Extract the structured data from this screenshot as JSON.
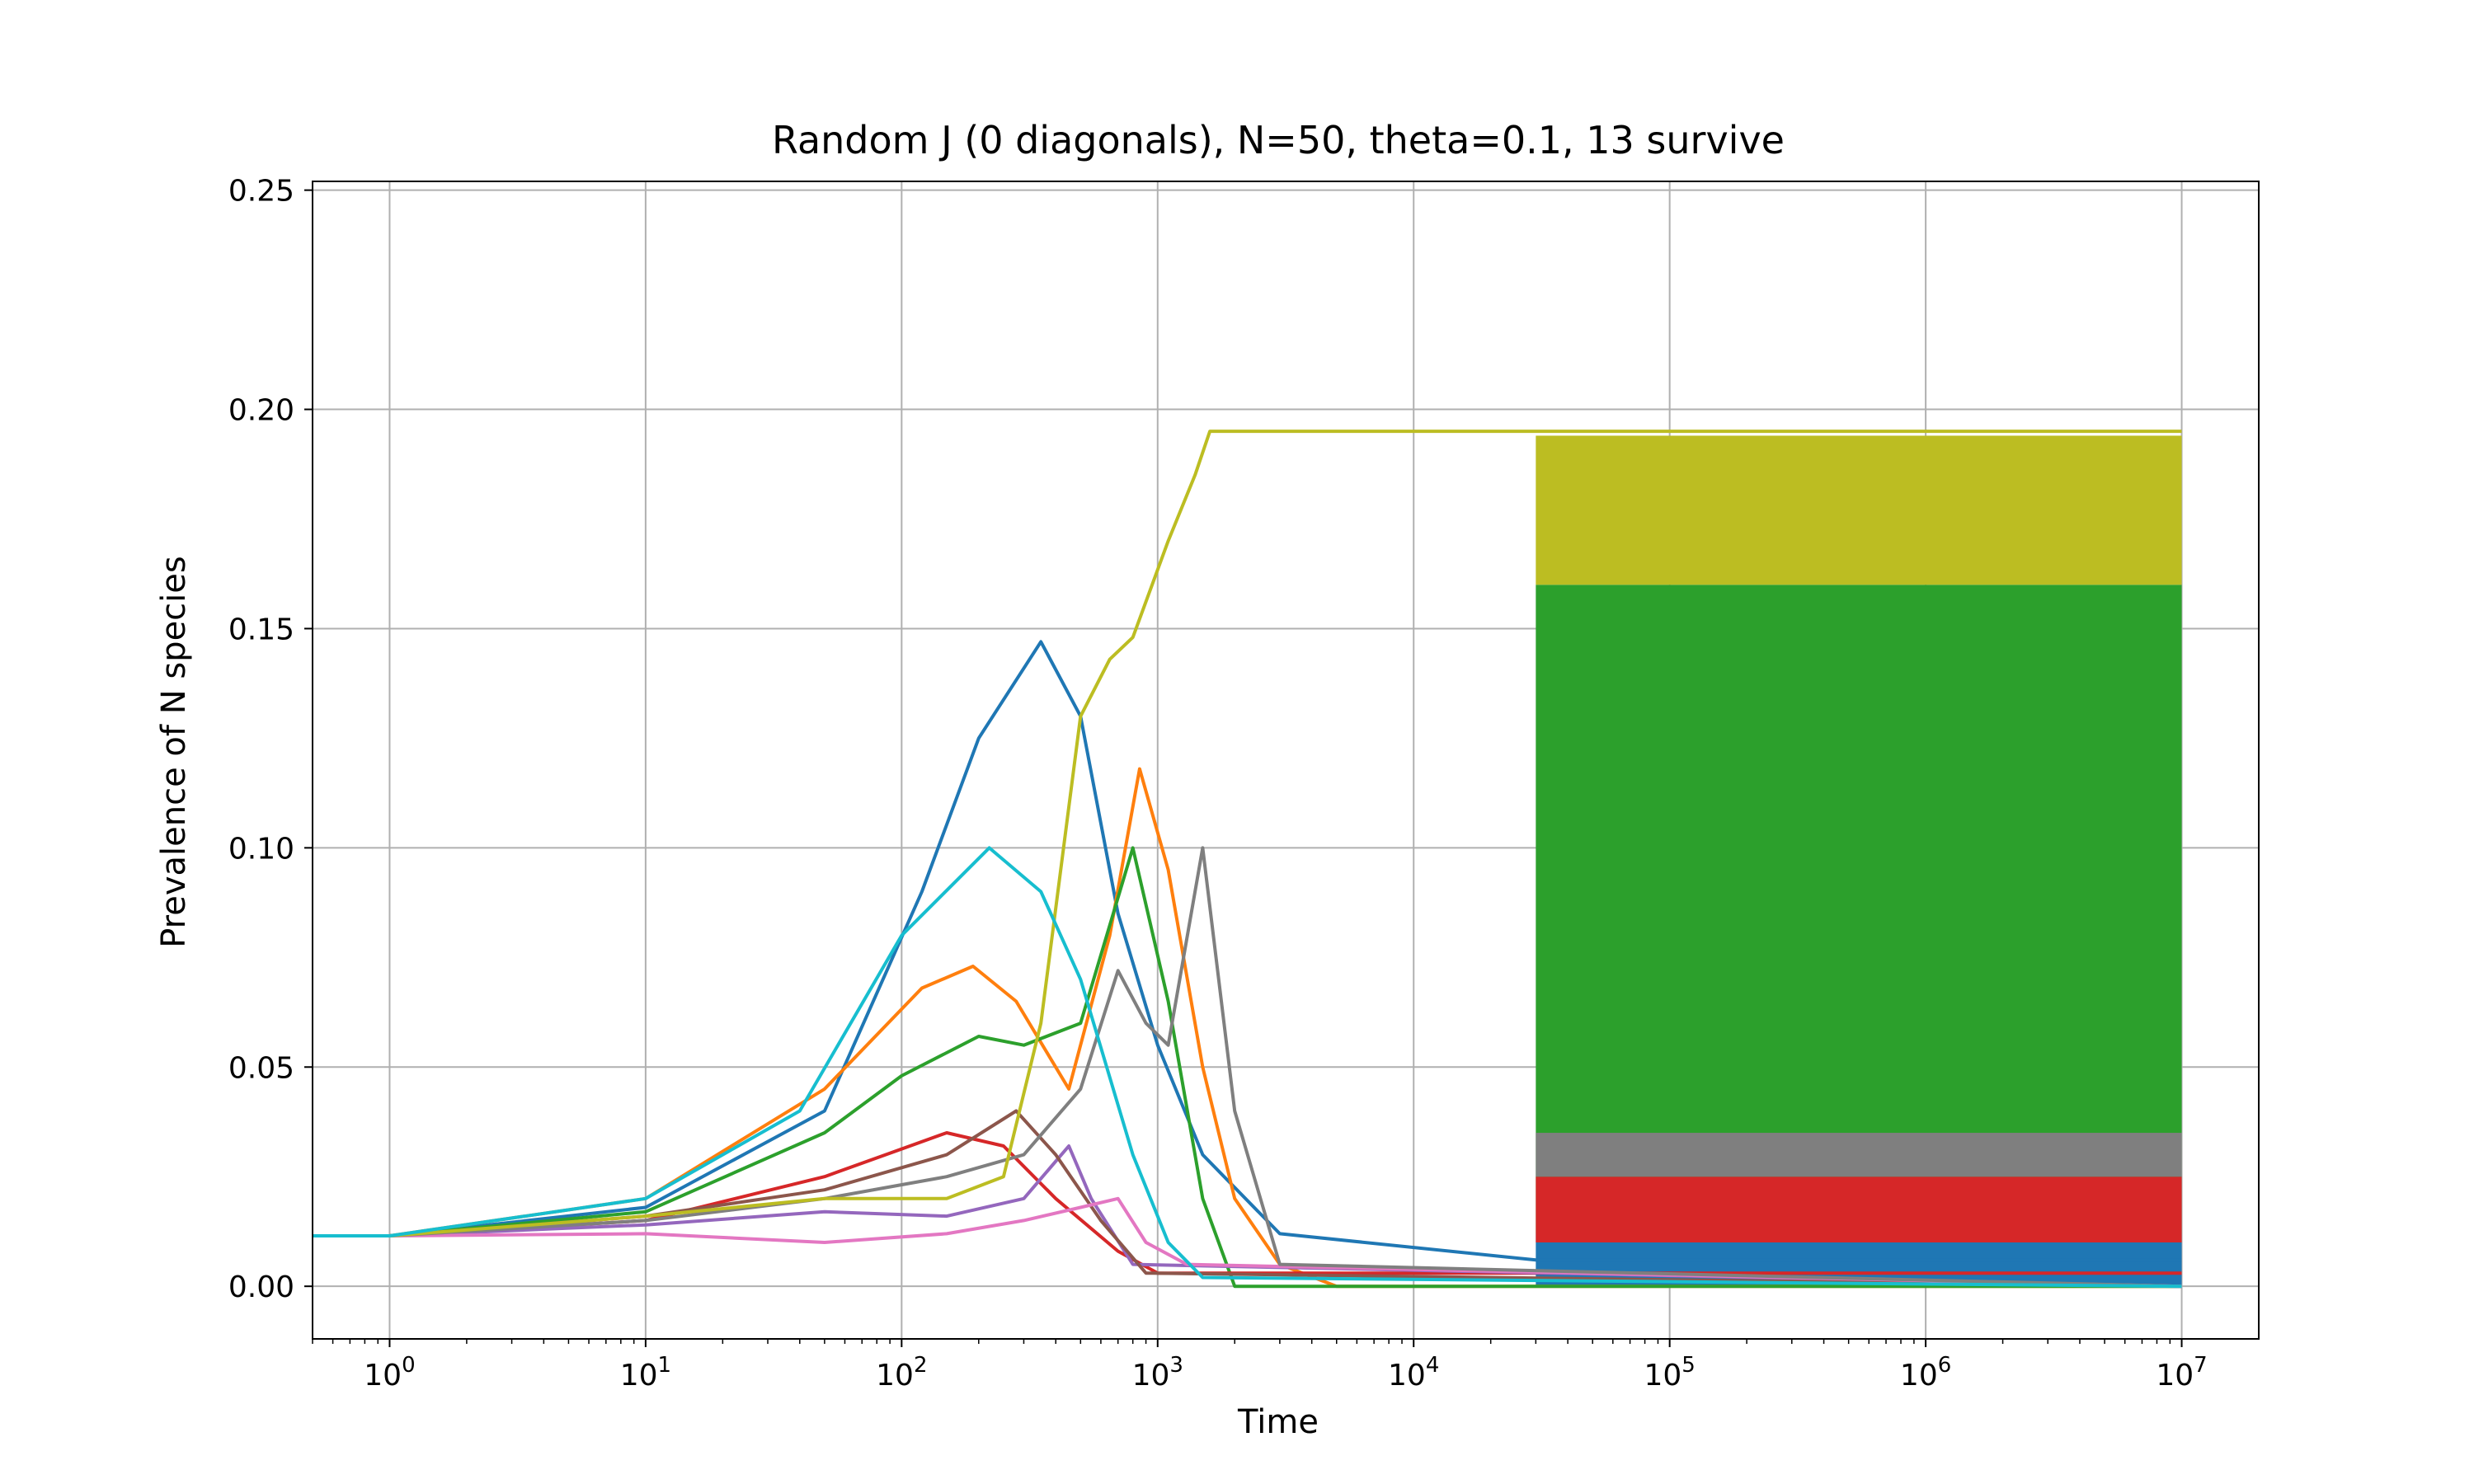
{
  "chart_data": {
    "type": "line",
    "title": "Random J (0 diagonals), N=50, theta=0.1, 13 survive",
    "xlabel": "Time",
    "ylabel": "Prevalence of N species",
    "xscale": "log",
    "xlim": [
      0.5,
      20000000
    ],
    "ylim": [
      -0.012,
      0.252
    ],
    "xticks": [
      {
        "value": 1,
        "base": "10",
        "exp": "0"
      },
      {
        "value": 10,
        "base": "10",
        "exp": "1"
      },
      {
        "value": 100,
        "base": "10",
        "exp": "2"
      },
      {
        "value": 1000,
        "base": "10",
        "exp": "3"
      },
      {
        "value": 10000,
        "base": "10",
        "exp": "4"
      },
      {
        "value": 100000,
        "base": "10",
        "exp": "5"
      },
      {
        "value": 1000000,
        "base": "10",
        "exp": "6"
      },
      {
        "value": 10000000,
        "base": "10",
        "exp": "7"
      }
    ],
    "yticks": [
      {
        "value": 0.0,
        "label": "0.00"
      },
      {
        "value": 0.05,
        "label": "0.05"
      },
      {
        "value": 0.1,
        "label": "0.10"
      },
      {
        "value": 0.15,
        "label": "0.15"
      },
      {
        "value": 0.2,
        "label": "0.20"
      },
      {
        "value": 0.25,
        "label": "0.25"
      }
    ],
    "grid": true,
    "legend": "none",
    "series_count": 50,
    "surviving_species": 13,
    "series": [
      {
        "color": "#1f77b4",
        "points": [
          [
            0.5,
            0.0115
          ],
          [
            1,
            0.0115
          ],
          [
            10,
            0.018
          ],
          [
            50,
            0.04
          ],
          [
            120,
            0.09
          ],
          [
            200,
            0.125
          ],
          [
            350,
            0.147
          ],
          [
            500,
            0.13
          ],
          [
            700,
            0.085
          ],
          [
            1000,
            0.055
          ],
          [
            1500,
            0.03
          ],
          [
            3000,
            0.012
          ],
          [
            30000,
            0.006
          ],
          [
            10000000,
            0.006
          ]
        ],
        "steady_band": [
          0.0,
          0.012
        ],
        "band_start": 30000
      },
      {
        "color": "#ff7f0e",
        "points": [
          [
            0.5,
            0.0115
          ],
          [
            1,
            0.0115
          ],
          [
            10,
            0.02
          ],
          [
            50,
            0.045
          ],
          [
            120,
            0.068
          ],
          [
            190,
            0.073
          ],
          [
            280,
            0.065
          ],
          [
            450,
            0.045
          ],
          [
            650,
            0.08
          ],
          [
            850,
            0.118
          ],
          [
            1100,
            0.095
          ],
          [
            1500,
            0.05
          ],
          [
            2000,
            0.02
          ],
          [
            3000,
            0.005
          ],
          [
            5000,
            0.0
          ],
          [
            10000000,
            0.0
          ]
        ]
      },
      {
        "color": "#2ca02c",
        "points": [
          [
            0.5,
            0.0115
          ],
          [
            1,
            0.0115
          ],
          [
            10,
            0.017
          ],
          [
            50,
            0.035
          ],
          [
            100,
            0.048
          ],
          [
            200,
            0.057
          ],
          [
            300,
            0.055
          ],
          [
            500,
            0.06
          ],
          [
            800,
            0.1
          ],
          [
            1100,
            0.065
          ],
          [
            1500,
            0.02
          ],
          [
            2000,
            0.0
          ],
          [
            10000000,
            0.0
          ]
        ],
        "steady_band": [
          0.012,
          0.16
        ],
        "band_start": 30000
      },
      {
        "color": "#d62728",
        "points": [
          [
            0.5,
            0.0115
          ],
          [
            1,
            0.0115
          ],
          [
            10,
            0.015
          ],
          [
            50,
            0.025
          ],
          [
            150,
            0.035
          ],
          [
            250,
            0.032
          ],
          [
            400,
            0.02
          ],
          [
            700,
            0.008
          ],
          [
            1000,
            0.003
          ],
          [
            10000000,
            0.003
          ]
        ],
        "steady_band": [
          0.01,
          0.025
        ],
        "band_start": 30000
      },
      {
        "color": "#9467bd",
        "points": [
          [
            0.5,
            0.0115
          ],
          [
            1,
            0.0115
          ],
          [
            10,
            0.014
          ],
          [
            50,
            0.017
          ],
          [
            150,
            0.016
          ],
          [
            300,
            0.02
          ],
          [
            450,
            0.032
          ],
          [
            550,
            0.02
          ],
          [
            800,
            0.005
          ],
          [
            10000000,
            0.0
          ]
        ]
      },
      {
        "color": "#8c564b",
        "points": [
          [
            0.5,
            0.0115
          ],
          [
            1,
            0.0115
          ],
          [
            10,
            0.016
          ],
          [
            50,
            0.022
          ],
          [
            150,
            0.03
          ],
          [
            280,
            0.04
          ],
          [
            400,
            0.03
          ],
          [
            600,
            0.015
          ],
          [
            900,
            0.003
          ],
          [
            10000000,
            0.0
          ]
        ]
      },
      {
        "color": "#e377c2",
        "points": [
          [
            0.5,
            0.0115
          ],
          [
            1,
            0.0115
          ],
          [
            10,
            0.012
          ],
          [
            50,
            0.01
          ],
          [
            150,
            0.012
          ],
          [
            300,
            0.015
          ],
          [
            500,
            0.018
          ],
          [
            700,
            0.02
          ],
          [
            900,
            0.01
          ],
          [
            1300,
            0.005
          ],
          [
            10000000,
            0.0
          ]
        ]
      },
      {
        "color": "#7f7f7f",
        "points": [
          [
            0.5,
            0.0115
          ],
          [
            1,
            0.0115
          ],
          [
            10,
            0.015
          ],
          [
            50,
            0.02
          ],
          [
            150,
            0.025
          ],
          [
            300,
            0.03
          ],
          [
            500,
            0.045
          ],
          [
            700,
            0.072
          ],
          [
            900,
            0.06
          ],
          [
            1100,
            0.055
          ],
          [
            1500,
            0.1
          ],
          [
            2000,
            0.04
          ],
          [
            3000,
            0.005
          ],
          [
            10000000,
            0.0
          ]
        ],
        "steady_band": [
          0.025,
          0.035
        ],
        "band_start": 30000
      },
      {
        "color": "#bcbd22",
        "points": [
          [
            0.5,
            0.0115
          ],
          [
            1,
            0.0115
          ],
          [
            10,
            0.016
          ],
          [
            50,
            0.02
          ],
          [
            150,
            0.02
          ],
          [
            250,
            0.025
          ],
          [
            350,
            0.06
          ],
          [
            500,
            0.13
          ],
          [
            650,
            0.143
          ],
          [
            800,
            0.148
          ],
          [
            1100,
            0.17
          ],
          [
            1400,
            0.185
          ],
          [
            1600,
            0.195
          ],
          [
            10000000,
            0.195
          ]
        ],
        "steady_band": [
          0.16,
          0.194
        ],
        "band_start": 30000
      },
      {
        "color": "#17becf",
        "points": [
          [
            0.5,
            0.0115
          ],
          [
            1,
            0.0115
          ],
          [
            10,
            0.02
          ],
          [
            40,
            0.04
          ],
          [
            100,
            0.08
          ],
          [
            220,
            0.1
          ],
          [
            350,
            0.09
          ],
          [
            500,
            0.07
          ],
          [
            800,
            0.03
          ],
          [
            1100,
            0.01
          ],
          [
            1500,
            0.002
          ],
          [
            10000000,
            0.0
          ]
        ]
      }
    ]
  }
}
